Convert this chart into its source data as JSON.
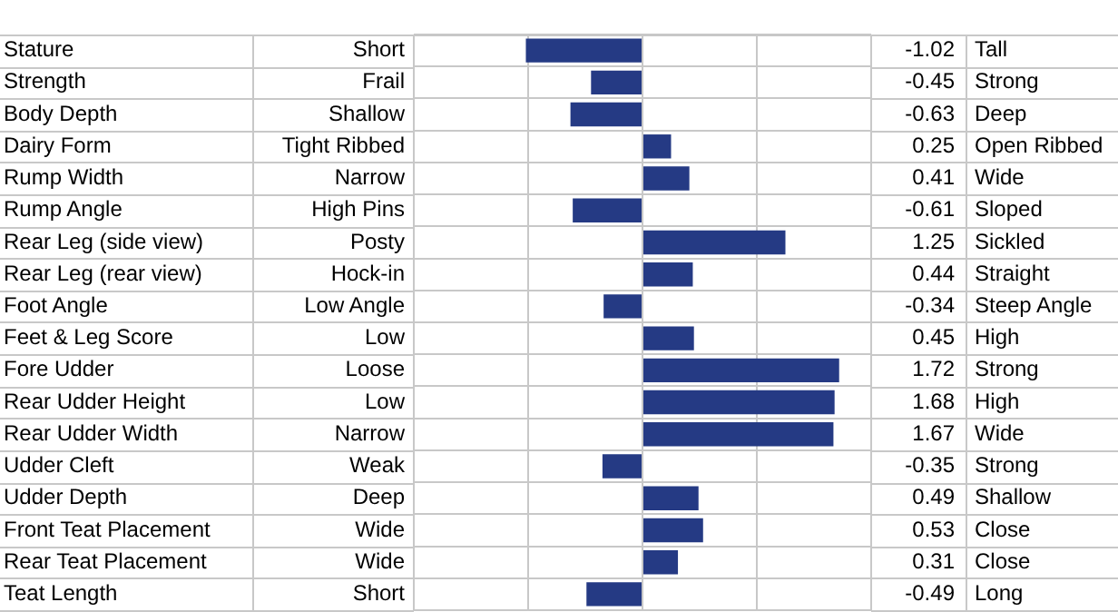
{
  "chart_data": {
    "type": "bar",
    "orientation": "horizontal",
    "categories": [
      "Stature",
      "Strength",
      "Body Depth",
      "Dairy Form",
      "Rump Width",
      "Rump Angle",
      "Rear Leg (side view)",
      "Rear Leg (rear view)",
      "Foot Angle",
      "Feet & Leg Score",
      "Fore Udder",
      "Rear Udder Height",
      "Rear Udder Width",
      "Udder Cleft",
      "Udder Depth",
      "Front Teat Placement",
      "Rear Teat Placement",
      "Teat Length"
    ],
    "values": [
      -1.02,
      -0.45,
      -0.63,
      0.25,
      0.41,
      -0.61,
      1.25,
      0.44,
      -0.34,
      0.45,
      1.72,
      1.68,
      1.67,
      -0.35,
      0.49,
      0.53,
      0.31,
      -0.49
    ],
    "color": "#253a84",
    "xlim": [
      -2,
      2
    ],
    "xticks": [
      -2,
      -1,
      0,
      1,
      2
    ],
    "tick_labels": false,
    "grid": true,
    "legend": false,
    "data_labels": true,
    "annotations": [
      "Short",
      "Tall",
      "Frail",
      "Strong",
      "Shallow",
      "Deep",
      "Tight Ribbed",
      "Open Ribbed",
      "Narrow",
      "Wide",
      "High Pins",
      "Sloped",
      "Posty",
      "Sickled",
      "Hock-in",
      "Straight",
      "Low Angle",
      "Steep Angle",
      "Low",
      "High",
      "Loose",
      "Strong",
      "Low",
      "High",
      "Narrow",
      "Wide",
      "Weak",
      "Strong",
      "Deep",
      "Shallow",
      "Wide",
      "Close",
      "Wide",
      "Close",
      "Short",
      "Long"
    ]
  }
}
